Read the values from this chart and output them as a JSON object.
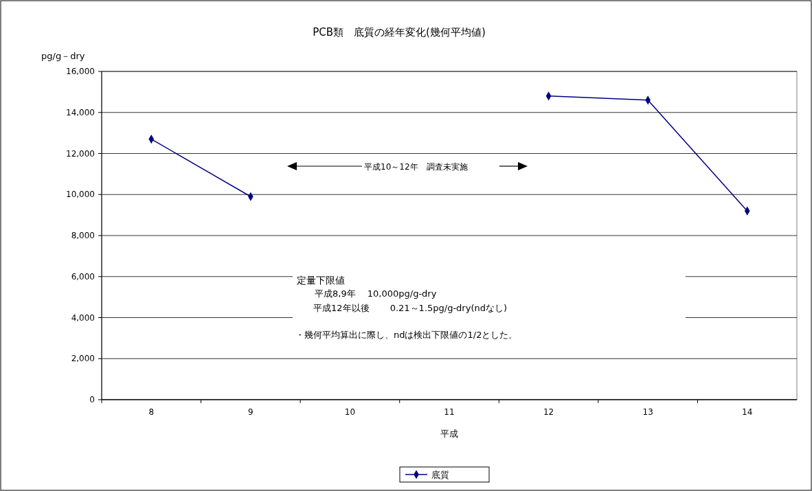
{
  "chart_data": {
    "type": "line",
    "title": "PCB類　底質の経年変化(幾何平均値)",
    "ylabel": "pg/g－dry",
    "xlabel": "平成",
    "categories": [
      "8",
      "9",
      "10",
      "11",
      "12",
      "13",
      "14"
    ],
    "series": [
      {
        "name": "底質",
        "color": "#000080",
        "values": [
          12700,
          9900,
          null,
          null,
          14800,
          14600,
          9200
        ]
      }
    ],
    "ylim": [
      0,
      16000
    ],
    "yticks": [
      {
        "value": 0,
        "label": "0"
      },
      {
        "value": 2000,
        "label": "2,000"
      },
      {
        "value": 4000,
        "label": "4,000"
      },
      {
        "value": 6000,
        "label": "6,000"
      },
      {
        "value": 8000,
        "label": "8,000"
      },
      {
        "value": 10000,
        "label": "10,000"
      },
      {
        "value": 12000,
        "label": "12,000"
      },
      {
        "value": 14000,
        "label": "14,000"
      },
      {
        "value": 16000,
        "label": "16,000"
      }
    ],
    "grid": "y",
    "legend": "bottom",
    "marker": "diamond",
    "line_style": "solid",
    "annotations": [
      "平成10～12年　調査未実施",
      "定量下限値",
      "平成8,9年　 10,000pg/g-dry",
      "平成12年以後　　 0.21～1.5pg/g-dry(ndなし)",
      "・幾何平均算出に際し、ndは検出下限値の1/2とした。"
    ]
  }
}
